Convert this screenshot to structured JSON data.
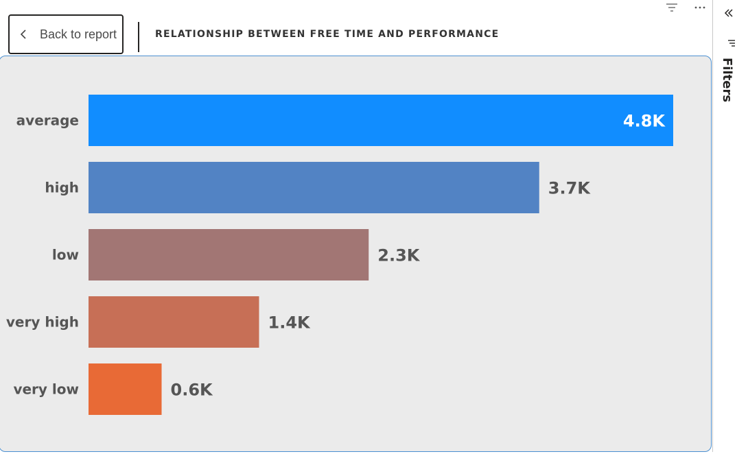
{
  "back_button": {
    "label": "Back to report"
  },
  "page_title": "RELATIONSHIP BETWEEN FREE TIME AND PERFORMANCE",
  "filters_pane": {
    "label": "Filters"
  },
  "icons": {
    "back": "chevron-left-icon",
    "top_filter": "filter-lines-icon",
    "more": "more-options-icon",
    "collapse": "double-chevron-left-icon",
    "pane_filter": "filter-icon"
  },
  "colors": {
    "card_bg": "#ebebeb",
    "card_border": "#4a8fd0",
    "label_text": "#555555"
  },
  "chart_data": {
    "type": "bar",
    "orientation": "horizontal",
    "title": "",
    "xlabel": "",
    "ylabel": "",
    "categories": [
      "average",
      "high",
      "low",
      "very high",
      "very low"
    ],
    "values": [
      4800,
      3700,
      2300,
      1400,
      600
    ],
    "data_labels": [
      "4.8K",
      "3.7K",
      "2.3K",
      "1.4K",
      "0.6K"
    ],
    "bar_colors": [
      "#118dff",
      "#5283c4",
      "#a27674",
      "#c76f56",
      "#e86a36"
    ],
    "xlim": [
      0,
      4800
    ],
    "grid": false,
    "legend": "none"
  }
}
